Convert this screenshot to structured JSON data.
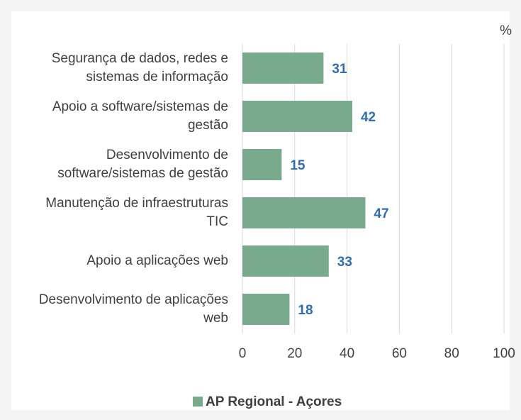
{
  "chart_data": {
    "type": "bar",
    "orientation": "horizontal",
    "categories": [
      "Segurança de dados, redes e\nsistemas de informação",
      "Apoio a software/sistemas de\ngestão",
      "Desenvolvimento de\nsoftware/sistemas de gestão",
      "Manutenção de infraestruturas\nTIC",
      "Apoio a aplicações web",
      "Desenvolvimento de aplicações\nweb"
    ],
    "series": [
      {
        "name": "AP Regional - Açores",
        "color": "#79aa8d",
        "values": [
          31,
          42,
          15,
          47,
          33,
          18
        ]
      }
    ],
    "unit": "%",
    "xlim": [
      0,
      100
    ],
    "xticks": [
      0,
      20,
      40,
      60,
      80,
      100
    ],
    "grid": true,
    "legend": "bottom",
    "value_label_color": "#2e6db4"
  }
}
